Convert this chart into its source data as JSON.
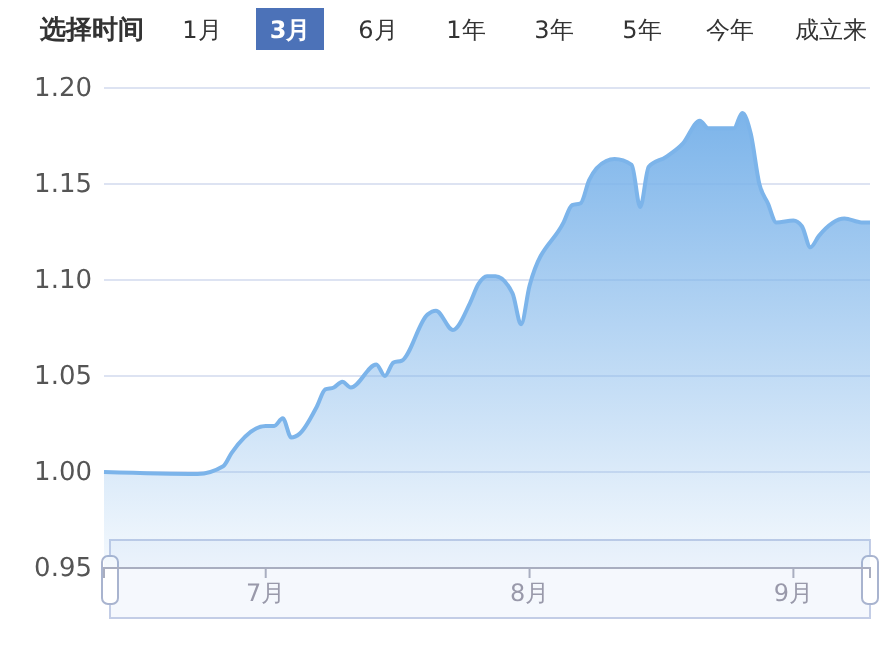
{
  "chart_data": {
    "type": "area",
    "title": "选择时间",
    "annotations": [
      "1月",
      "3月",
      "6月",
      "1年",
      "3年",
      "5年",
      "今年",
      "成立来"
    ],
    "x": [
      "--06-12",
      "--06-23",
      "--06-26",
      "--06-27",
      "--07-01",
      "--07-02",
      "--07-03",
      "--07-04",
      "--07-05",
      "--07-07",
      "--07-08",
      "--07-09",
      "--07-10",
      "--07-11",
      "--07-14",
      "--07-15",
      "--07-16",
      "--07-17",
      "--07-20",
      "--07-21",
      "--07-23",
      "--07-25",
      "--07-26",
      "--07-27",
      "--07-28",
      "--07-30",
      "--07-31",
      "--08-01",
      "--08-05",
      "--08-06",
      "--08-07",
      "--08-08",
      "--08-10",
      "--08-11",
      "--08-13",
      "--08-14",
      "--08-15",
      "--08-17",
      "--08-19",
      "--08-21",
      "--08-22",
      "--08-25",
      "--08-26",
      "--08-27",
      "--08-28",
      "--08-29",
      "--08-30",
      "--09-01",
      "--09-02",
      "--09-03",
      "--09-04",
      "--09-07",
      "--09-09",
      "--09-10"
    ],
    "series": [
      {
        "color": "#7cb4ea",
        "values": [
          1.0,
          0.999,
          1.003,
          1.01,
          1.024,
          1.024,
          1.028,
          1.018,
          1.02,
          1.034,
          1.043,
          1.044,
          1.047,
          1.044,
          1.056,
          1.05,
          1.057,
          1.058,
          1.082,
          1.084,
          1.074,
          1.088,
          1.098,
          1.102,
          1.102,
          1.093,
          1.077,
          1.097,
          1.13,
          1.139,
          1.14,
          1.152,
          1.162,
          1.163,
          1.16,
          1.138,
          1.159,
          1.164,
          1.171,
          1.183,
          1.179,
          1.179,
          1.187,
          1.176,
          1.15,
          1.14,
          1.13,
          1.131,
          1.128,
          1.117,
          1.123,
          1.132,
          1.13,
          1.13
        ]
      }
    ],
    "xlim": [
      "--06-12",
      "--09-10"
    ],
    "xticks": [
      {
        "value": "--07-01",
        "label": "7月"
      },
      {
        "value": "--08-01",
        "label": "8月"
      },
      {
        "value": "--09-01",
        "label": "9月"
      }
    ],
    "ylim": [
      0.95,
      1.2
    ],
    "yticks": [
      {
        "value": 0.95,
        "label": "0.95"
      },
      {
        "value": 1.0,
        "label": "1.00"
      },
      {
        "value": 1.05,
        "label": "1.05"
      },
      {
        "value": 1.1,
        "label": "1.10"
      },
      {
        "value": 1.15,
        "label": "1.15"
      },
      {
        "value": 1.2,
        "label": "1.20"
      }
    ],
    "grid": "y",
    "marker": "none"
  }
}
